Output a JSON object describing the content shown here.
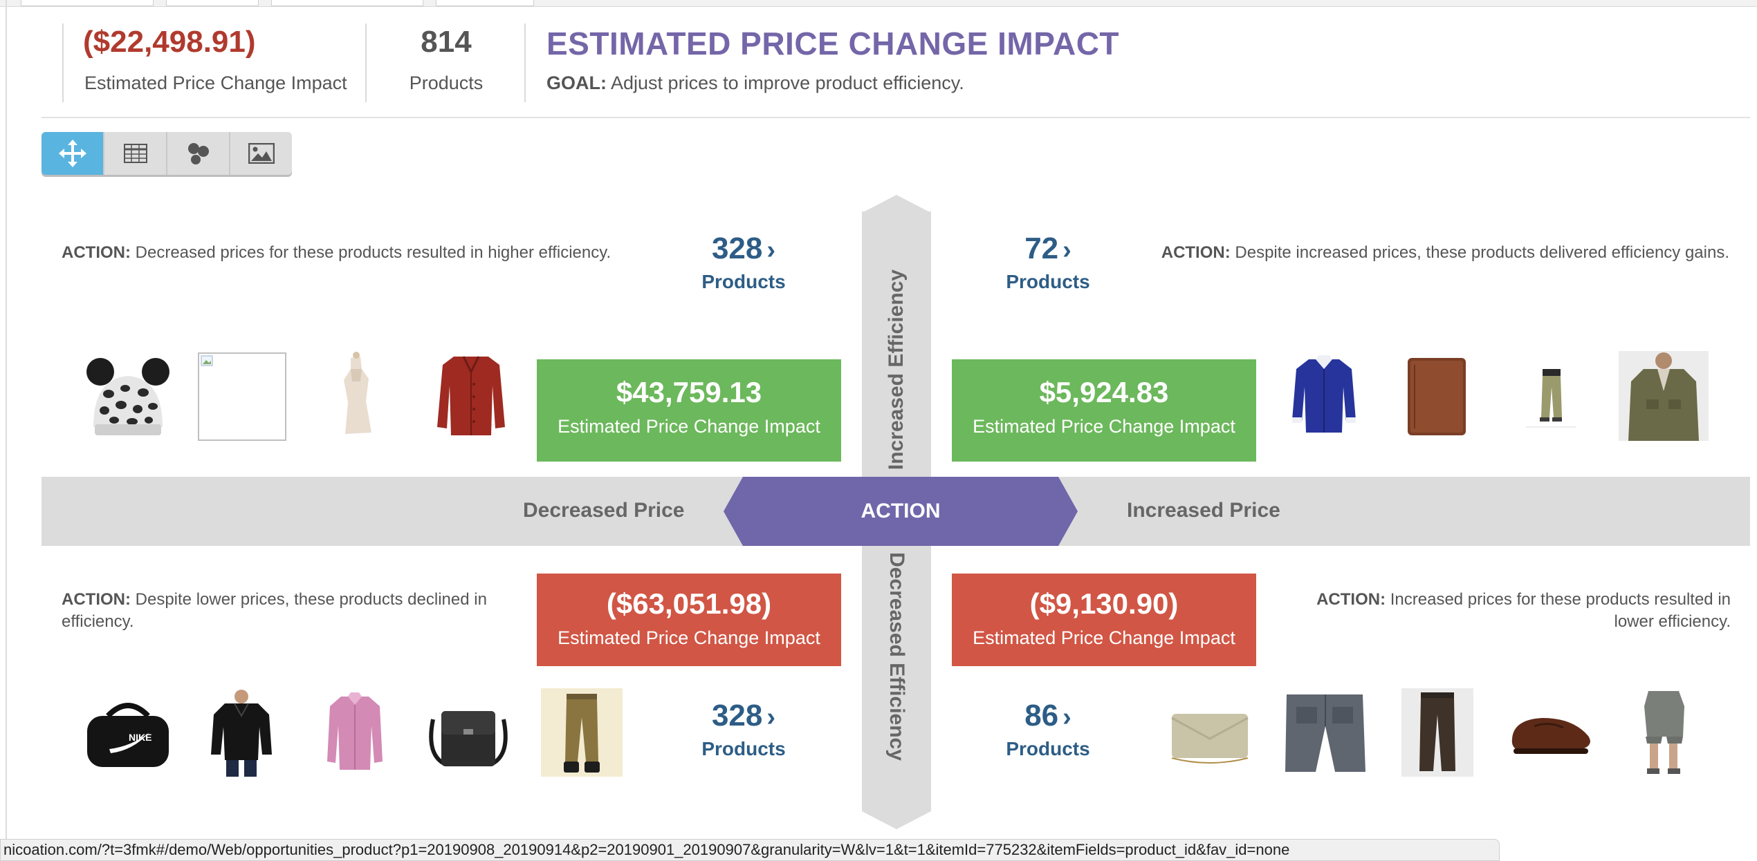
{
  "summary": {
    "impact_value": "($22,498.91)",
    "impact_label": "Estimated Price Change Impact",
    "products_count": "814",
    "products_label": "Products"
  },
  "header": {
    "title": "ESTIMATED PRICE CHANGE IMPACT",
    "goal_label": "GOAL:",
    "goal_text": "Adjust prices to improve product efficiency."
  },
  "toolbar": {
    "buttons": [
      {
        "icon": "move-arrows-icon",
        "active": true
      },
      {
        "icon": "table-grid-icon",
        "active": false
      },
      {
        "icon": "bubble-chart-icon",
        "active": false
      },
      {
        "icon": "image-icon",
        "active": false
      }
    ]
  },
  "axis": {
    "up_label": "Increased Efficiency",
    "down_label": "Decreased Efficiency",
    "left_label": "Decreased Price",
    "right_label": "Increased Price",
    "center_label": "ACTION"
  },
  "quadrants": {
    "top_left": {
      "action_label": "ACTION:",
      "action_text": "Decreased prices for these products resulted in higher efficiency.",
      "count": "328",
      "count_label": "Products",
      "impact_value": "$43,759.13",
      "impact_label": "Estimated Price Change Impact",
      "products": [
        "beanie-hat",
        "broken-image",
        "dress",
        "leather-jacket"
      ]
    },
    "top_right": {
      "action_label": "ACTION:",
      "action_text": "Despite increased prices, these products delivered efficiency gains.",
      "count": "72",
      "count_label": "Products",
      "impact_value": "$5,924.83",
      "impact_label": "Estimated Price Change Impact",
      "products": [
        "blue-shirt",
        "wallet",
        "khaki-pants",
        "olive-jacket"
      ]
    },
    "bottom_left": {
      "action_label": "ACTION:",
      "action_text": "Despite lower prices, these products declined in efficiency.",
      "count": "328",
      "count_label": "Products",
      "impact_value": "($63,051.98)",
      "impact_label": "Estimated Price Change Impact",
      "products": [
        "duffel-bag",
        "black-sweater",
        "pink-shirt",
        "messenger-bag",
        "olive-trousers"
      ]
    },
    "bottom_right": {
      "action_label": "ACTION:",
      "action_text": "Increased prices for these products resulted in lower efficiency.",
      "count": "86",
      "count_label": "Products",
      "impact_value": "($9,130.90)",
      "impact_label": "Estimated Price Change Impact",
      "products": [
        "clutch",
        "jeans",
        "brown-trousers",
        "loafer",
        "shorts"
      ]
    }
  },
  "colors": {
    "accent_purple": "#7066aa",
    "positive_green": "#6cb85c",
    "negative_red": "#d15645",
    "count_blue": "#2d5d86",
    "toolbar_active": "#5ab4e0"
  },
  "status_bar": {
    "url": "nicoation.com/?t=3fmk#/demo/Web/opportunities_product?p1=20190908_20190914&p2=20190901_20190907&granularity=W&lv=1&t=1&itemId=775232&itemFields=product_id&fav_id=none"
  }
}
